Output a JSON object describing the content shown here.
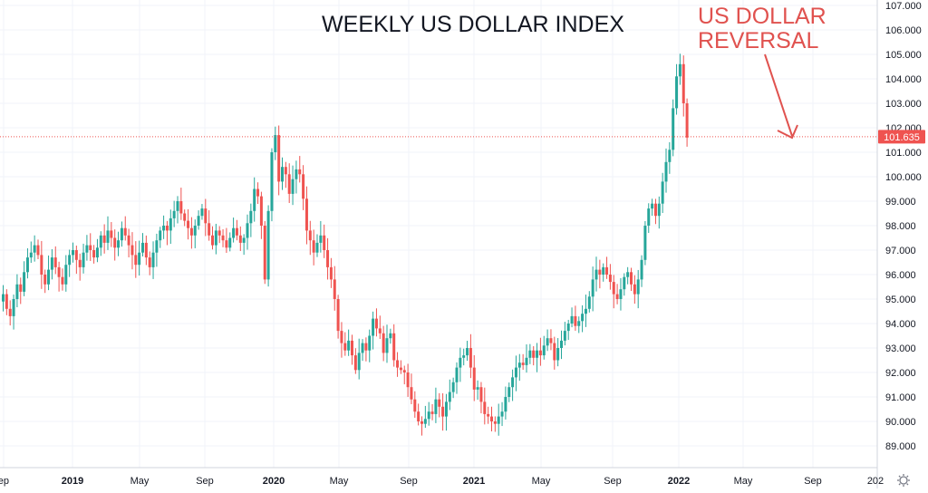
{
  "chart_data": {
    "type": "candlestick",
    "title": "WEEKLY US DOLLAR INDEX",
    "annotation": [
      "US DOLLAR",
      "REVERSAL"
    ],
    "last_price_label": "101.635",
    "last_price": 101.635,
    "ylim": [
      88.5,
      107.2
    ],
    "y_ticks": [
      "89.000",
      "90.000",
      "91.000",
      "92.000",
      "93.000",
      "94.000",
      "95.000",
      "96.000",
      "97.000",
      "98.000",
      "99.000",
      "100.000",
      "101.000",
      "102.000",
      "103.000",
      "104.000",
      "105.000",
      "106.000",
      "107.000"
    ],
    "x_ticks": [
      "ep",
      "2019",
      "May",
      "Sep",
      "2020",
      "May",
      "Sep",
      "2021",
      "May",
      "Sep",
      "2022",
      "May",
      "Sep",
      "202"
    ],
    "grid": true,
    "colors": {
      "up": "#26a69a",
      "down": "#ef5350",
      "annotation": "#e0524f",
      "price_line": "#ef5350",
      "grid": "#f0f3fa",
      "text": "#131722"
    },
    "closes": [
      95.2,
      94.6,
      94.3,
      95.0,
      95.6,
      95.3,
      96.1,
      96.7,
      96.9,
      97.2,
      96.8,
      96.0,
      95.6,
      96.2,
      96.7,
      96.3,
      95.9,
      95.6,
      96.4,
      96.8,
      97.0,
      96.6,
      96.3,
      96.9,
      97.2,
      97.0,
      96.7,
      97.1,
      97.6,
      97.3,
      97.8,
      97.5,
      97.1,
      97.4,
      97.9,
      97.6,
      97.2,
      96.8,
      96.4,
      96.9,
      97.3,
      96.7,
      96.3,
      96.9,
      97.4,
      97.8,
      98.0,
      97.8,
      98.3,
      98.6,
      99.0,
      98.5,
      98.2,
      97.9,
      97.6,
      98.0,
      98.4,
      98.7,
      98.1,
      97.6,
      97.2,
      97.8,
      97.6,
      97.4,
      97.1,
      97.5,
      97.9,
      97.6,
      97.3,
      97.5,
      98.1,
      98.6,
      99.5,
      99.2,
      98.0,
      95.8,
      98.6,
      101.0,
      101.7,
      99.8,
      100.4,
      100.1,
      99.3,
      99.9,
      100.3,
      100.1,
      99.1,
      97.8,
      97.4,
      96.9,
      97.3,
      97.6,
      97.0,
      96.3,
      95.8,
      95.0,
      93.7,
      93.2,
      92.9,
      93.3,
      92.7,
      92.1,
      92.8,
      93.2,
      92.9,
      93.5,
      94.2,
      93.8,
      93.6,
      92.8,
      93.4,
      93.6,
      92.5,
      92.2,
      92.1,
      92.0,
      91.4,
      90.9,
      90.4,
      90.0,
      89.9,
      90.1,
      90.4,
      90.3,
      90.9,
      90.6,
      90.2,
      90.8,
      91.2,
      91.6,
      92.2,
      92.6,
      92.7,
      93.0,
      92.2,
      91.3,
      91.4,
      90.8,
      90.3,
      90.2,
      90.0,
      89.9,
      90.2,
      90.4,
      91.0,
      91.4,
      91.8,
      92.2,
      92.4,
      92.3,
      92.6,
      92.9,
      92.6,
      92.9,
      92.7,
      93.1,
      93.4,
      93.2,
      92.5,
      93.0,
      93.3,
      93.7,
      94.0,
      94.3,
      93.9,
      94.1,
      94.4,
      94.6,
      95.1,
      95.8,
      96.2,
      96.0,
      96.3,
      96.0,
      95.7,
      95.2,
      95.0,
      95.4,
      95.9,
      96.1,
      95.6,
      95.2,
      95.8,
      96.6,
      98.0,
      98.7,
      98.9,
      98.4,
      98.9,
      99.8,
      100.6,
      101.1,
      102.8,
      104.1,
      104.6,
      103.0,
      101.6
    ],
    "x_start_index": -8,
    "x_step": 3.85,
    "x_offset": 8
  }
}
